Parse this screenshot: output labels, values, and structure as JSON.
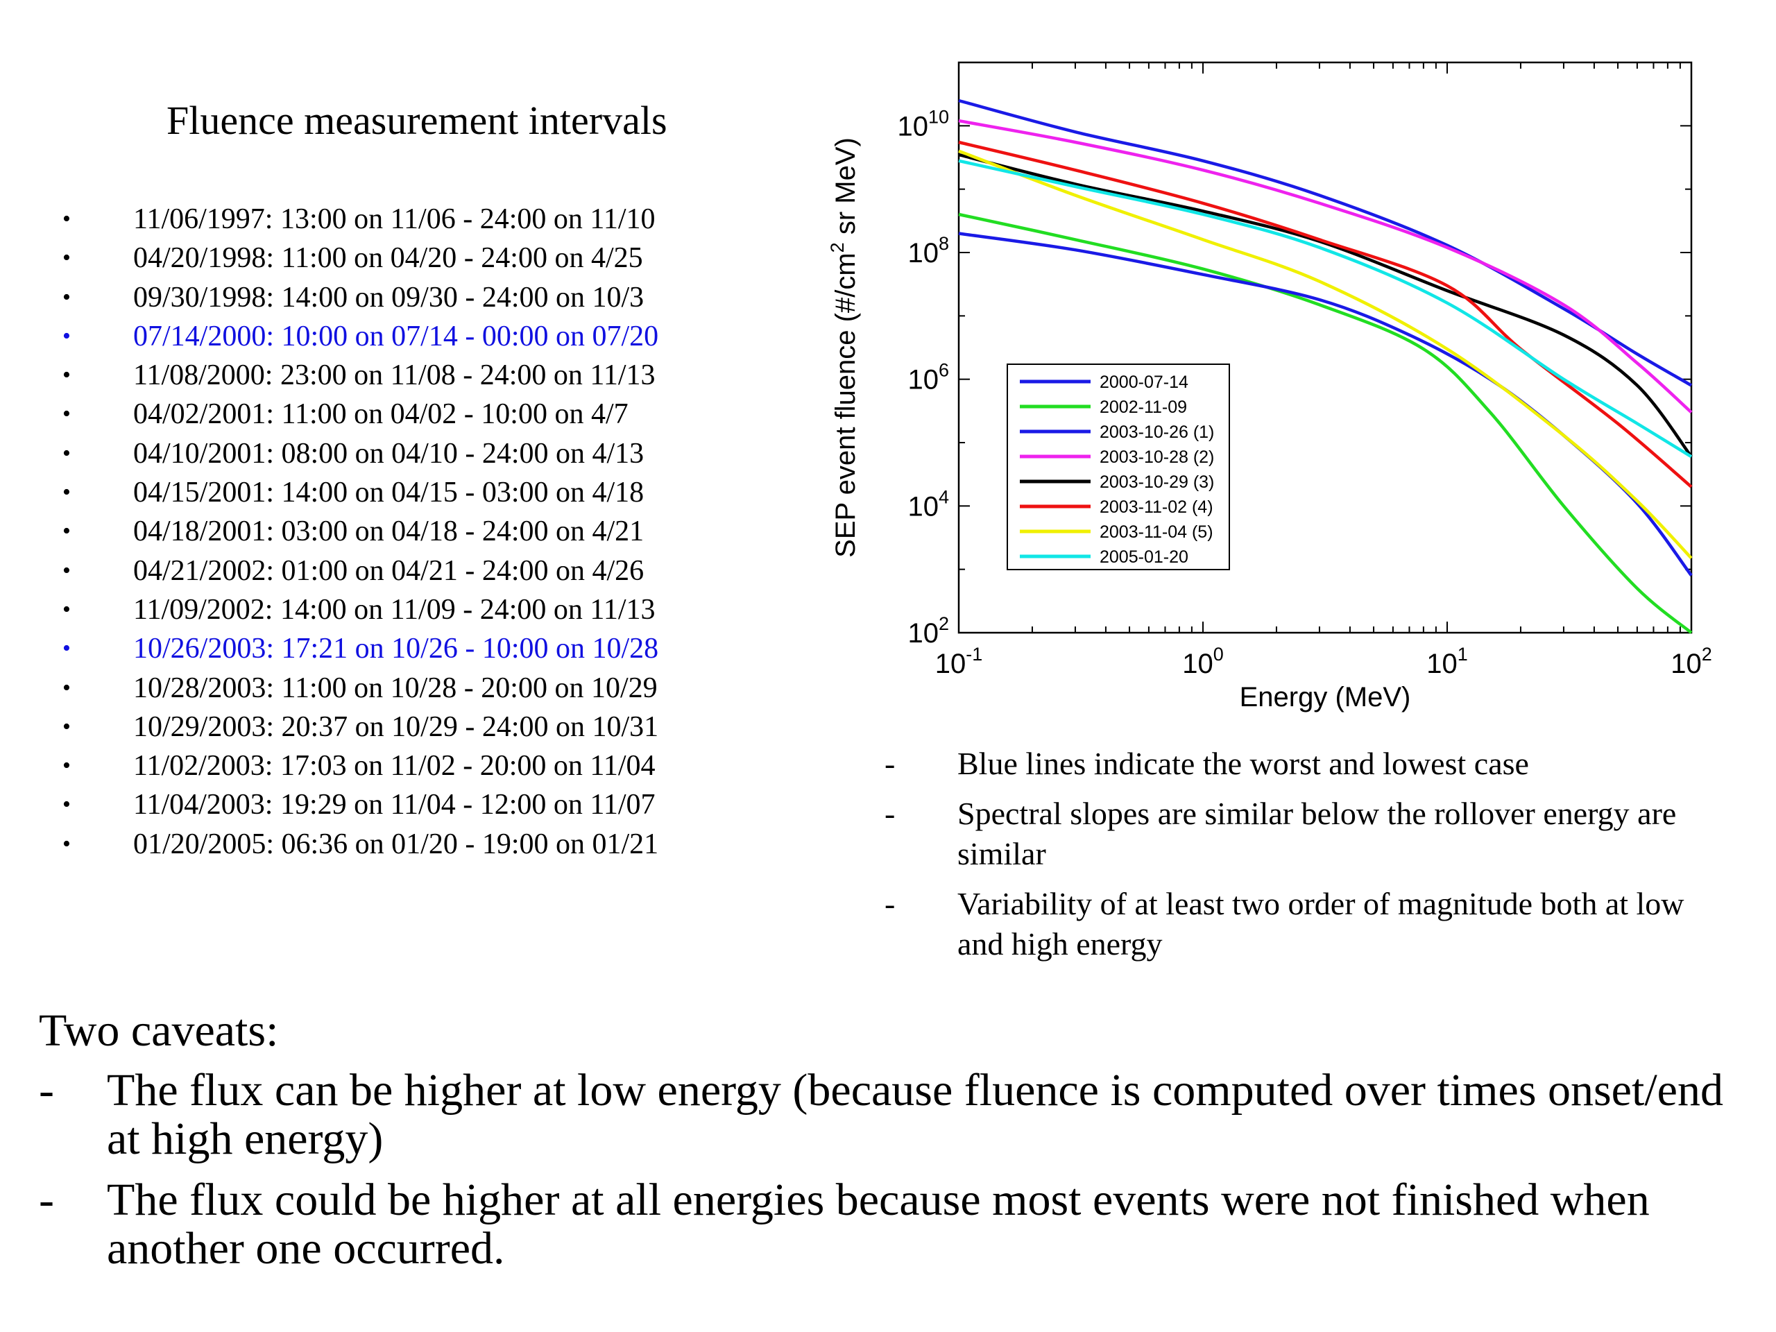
{
  "intervals": {
    "title": "Fluence measurement intervals",
    "items": [
      {
        "text": "11/06/1997: 13:00 on 11/06 - 24:00 on 11/10",
        "highlight": false
      },
      {
        "text": "04/20/1998: 11:00 on 04/20 - 24:00 on 4/25",
        "highlight": false
      },
      {
        "text": "09/30/1998: 14:00 on 09/30 -  24:00 on 10/3",
        "highlight": false
      },
      {
        "text": "07/14/2000: 10:00 on 07/14 - 00:00 on 07/20",
        "highlight": true
      },
      {
        "text": "11/08/2000: 23:00 on 11/08 - 24:00 on 11/13",
        "highlight": false
      },
      {
        "text": "04/02/2001:  11:00 on 04/02 - 10:00 on 4/7",
        "highlight": false
      },
      {
        "text": "04/10/2001: 08:00 on 04/10 - 24:00 on 4/13",
        "highlight": false
      },
      {
        "text": "04/15/2001: 14:00 on 04/15 - 03:00 on 4/18",
        "highlight": false
      },
      {
        "text": "04/18/2001: 03:00 on 04/18 - 24:00 on 4/21",
        "highlight": false
      },
      {
        "text": "04/21/2002: 01:00 on 04/21 - 24:00 on 4/26",
        "highlight": false
      },
      {
        "text": "11/09/2002:  14:00 on 11/09 - 24:00 on 11/13",
        "highlight": false
      },
      {
        "text": "10/26/2003:  17:21 on 10/26 - 10:00 on 10/28",
        "highlight": true
      },
      {
        "text": "10/28/2003:  11:00 on 10/28 - 20:00 on 10/29",
        "highlight": false
      },
      {
        "text": "10/29/2003:  20:37 on 10/29 - 24:00 on 10/31",
        "highlight": false
      },
      {
        "text": "11/02/2003:  17:03 on 11/02 - 20:00 on 11/04",
        "highlight": false
      },
      {
        "text": "11/04/2003:  19:29 on 11/04 -  12:00 on 11/07",
        "highlight": false
      },
      {
        "text": "01/20/2005:  06:36 on 01/20 -  19:00 on 01/21",
        "highlight": false
      }
    ],
    "bullet": "•",
    "highlight_color": "#1010e0"
  },
  "notes": [
    "Blue lines indicate the worst and lowest case",
    "Spectral slopes are similar below the rollover energy are similar",
    "Variability of at least two order of magnitude both at low and high energy"
  ],
  "caveats": {
    "title": "Two caveats:",
    "items": [
      "The flux can be higher at low energy (because fluence is computed over times onset/end at high energy)",
      "The flux could be higher at all energies because most events were not finished when another one occurred."
    ]
  },
  "dash": "-",
  "chart_data": {
    "type": "line",
    "xlabel": "Energy (MeV)",
    "ylabel_parts": [
      "SEP event fluence (#/cm",
      "2",
      " sr MeV)"
    ],
    "x_scale": "log",
    "y_scale": "log",
    "xlim": [
      0.1,
      100
    ],
    "ylim": [
      100,
      100000000000
    ],
    "x_ticks": [
      {
        "value": 0.1,
        "base": "10",
        "exp": "-1"
      },
      {
        "value": 1,
        "base": "10",
        "exp": "0"
      },
      {
        "value": 10,
        "base": "10",
        "exp": "1"
      },
      {
        "value": 100,
        "base": "10",
        "exp": "2"
      }
    ],
    "y_ticks": [
      {
        "value": 100,
        "base": "10",
        "exp": "2"
      },
      {
        "value": 10000,
        "base": "10",
        "exp": "4"
      },
      {
        "value": 1000000,
        "base": "10",
        "exp": "6"
      },
      {
        "value": 100000000,
        "base": "10",
        "exp": "8"
      },
      {
        "value": 10000000000,
        "base": "10",
        "exp": "10"
      }
    ],
    "grid": false,
    "legend_position": "lower-left",
    "series": [
      {
        "name": "2000-07-14",
        "color": "#1a1ae6",
        "points": [
          [
            0.1,
            25000000000.0
          ],
          [
            0.3,
            8000000000.0
          ],
          [
            1,
            2800000000.0
          ],
          [
            3,
            800000000.0
          ],
          [
            10,
            130000000.0
          ],
          [
            30,
            13000000.0
          ],
          [
            60,
            2500000.0
          ],
          [
            100,
            800000.0
          ]
        ]
      },
      {
        "name": "2002-11-09",
        "color": "#22dd22",
        "points": [
          [
            0.1,
            400000000.0
          ],
          [
            0.3,
            160000000.0
          ],
          [
            1,
            55000000.0
          ],
          [
            3,
            15000000.0
          ],
          [
            8,
            3000000.0
          ],
          [
            15,
            300000.0
          ],
          [
            30,
            10000.0
          ],
          [
            60,
            500
          ],
          [
            100,
            90
          ]
        ]
      },
      {
        "name": "2003-10-26 (1)",
        "color": "#1a1ae6",
        "points": [
          [
            0.1,
            200000000.0
          ],
          [
            0.3,
            110000000.0
          ],
          [
            1,
            45000000.0
          ],
          [
            3,
            18000000.0
          ],
          [
            7,
            5000000.0
          ],
          [
            15,
            1000000.0
          ],
          [
            30,
            130000.0
          ],
          [
            60,
            11000.0
          ],
          [
            100,
            800
          ]
        ]
      },
      {
        "name": "2003-10-28 (2)",
        "color": "#ee22ee",
        "points": [
          [
            0.1,
            12000000000.0
          ],
          [
            0.3,
            5500000000.0
          ],
          [
            1,
            2000000000.0
          ],
          [
            3,
            600000000.0
          ],
          [
            10,
            120000000.0
          ],
          [
            30,
            15000000.0
          ],
          [
            60,
            1800000.0
          ],
          [
            100,
            300000.0
          ]
        ]
      },
      {
        "name": "2003-10-29 (3)",
        "color": "#000000",
        "points": [
          [
            0.1,
            3500000000.0
          ],
          [
            0.3,
            1200000000.0
          ],
          [
            1,
            450000000.0
          ],
          [
            3,
            150000000.0
          ],
          [
            10,
            25000000.0
          ],
          [
            30,
            5000000.0
          ],
          [
            60,
            800000.0
          ],
          [
            100,
            60000.0
          ]
        ]
      },
      {
        "name": "2003-11-02 (4)",
        "color": "#ee1111",
        "points": [
          [
            0.1,
            5500000000.0
          ],
          [
            0.3,
            2000000000.0
          ],
          [
            1,
            600000000.0
          ],
          [
            3,
            160000000.0
          ],
          [
            10,
            30000000.0
          ],
          [
            20,
            3000000.0
          ],
          [
            50,
            200000.0
          ],
          [
            100,
            20000.0
          ]
        ]
      },
      {
        "name": "2003-11-04 (5)",
        "color": "#f0f000",
        "points": [
          [
            0.1,
            4000000000.0
          ],
          [
            0.3,
            800000000.0
          ],
          [
            1,
            160000000.0
          ],
          [
            3,
            35000000.0
          ],
          [
            10,
            3000000.0
          ],
          [
            30,
            130000.0
          ],
          [
            60,
            12000.0
          ],
          [
            100,
            1500.0
          ]
        ]
      },
      {
        "name": "2005-01-20",
        "color": "#11e6e6",
        "points": [
          [
            0.1,
            2800000000.0
          ],
          [
            0.3,
            1100000000.0
          ],
          [
            1,
            400000000.0
          ],
          [
            3,
            120000000.0
          ],
          [
            10,
            16000000.0
          ],
          [
            30,
            1000000.0
          ],
          [
            60,
            200000.0
          ],
          [
            100,
            60000.0
          ]
        ]
      }
    ]
  }
}
